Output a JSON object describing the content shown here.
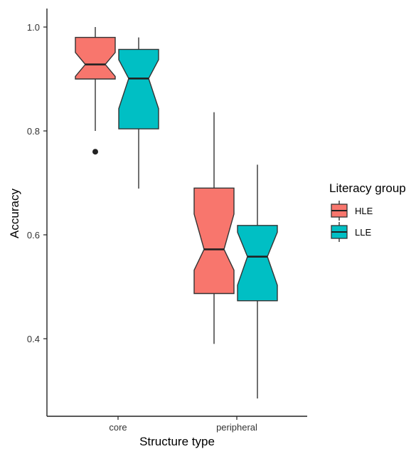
{
  "chart_data": {
    "type": "boxplot",
    "notched": true,
    "xlabel": "Structure type",
    "ylabel": "Accuracy",
    "categories": [
      "core",
      "peripheral"
    ],
    "ylim": [
      0.29,
      1.03
    ],
    "yticks": [
      0.4,
      0.6,
      0.8,
      1.0
    ],
    "ytick_labels": [
      "0.4",
      "0.6",
      "0.8",
      "1.0"
    ],
    "grid": false,
    "legend": {
      "title": "Literacy group",
      "placement": "right",
      "entries": [
        "HLE",
        "LLE"
      ]
    },
    "series": [
      {
        "name": "HLE",
        "color": "#F8766D",
        "boxes": [
          {
            "category": "core",
            "whisker_low": 0.8,
            "q1": 0.9,
            "notch_low": 0.905,
            "median": 0.928,
            "notch_high": 0.951,
            "q3": 0.98,
            "whisker_high": 1.0,
            "outliers": [
              0.76
            ]
          },
          {
            "category": "peripheral",
            "whisker_low": 0.39,
            "q1": 0.487,
            "notch_low": 0.532,
            "median": 0.572,
            "notch_high": 0.64,
            "q3": 0.69,
            "whisker_high": 0.836,
            "outliers": []
          }
        ]
      },
      {
        "name": "LLE",
        "color": "#00BFC4",
        "boxes": [
          {
            "category": "core",
            "whisker_low": 0.689,
            "q1": 0.804,
            "notch_low": 0.843,
            "median": 0.901,
            "notch_high": 0.937,
            "q3": 0.957,
            "whisker_high": 0.98,
            "outliers": []
          },
          {
            "category": "peripheral",
            "whisker_low": 0.285,
            "q1": 0.473,
            "notch_low": 0.503,
            "median": 0.558,
            "notch_high": 0.605,
            "q3": 0.618,
            "whisker_high": 0.735,
            "outliers": []
          }
        ]
      }
    ]
  }
}
